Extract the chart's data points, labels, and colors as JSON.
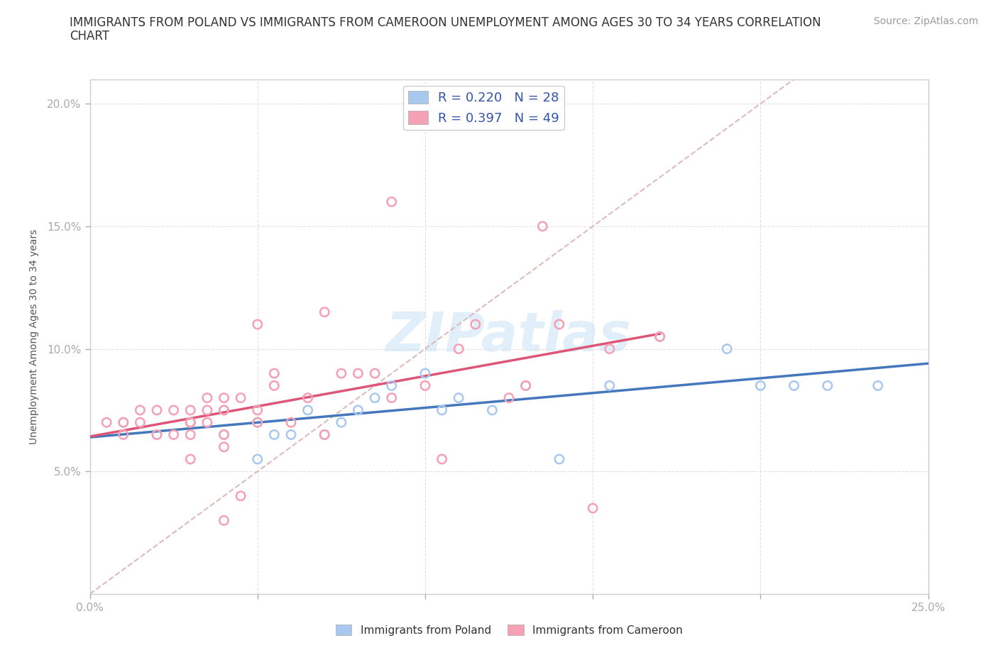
{
  "title_line1": "IMMIGRANTS FROM POLAND VS IMMIGRANTS FROM CAMEROON UNEMPLOYMENT AMONG AGES 30 TO 34 YEARS CORRELATION",
  "title_line2": "CHART",
  "source_text": "Source: ZipAtlas.com",
  "ylabel": "Unemployment Among Ages 30 to 34 years",
  "xlim": [
    0.0,
    0.25
  ],
  "ylim": [
    0.0,
    0.21
  ],
  "xticks": [
    0.0,
    0.05,
    0.1,
    0.15,
    0.2,
    0.25
  ],
  "xticklabels": [
    "0.0%",
    "",
    "",
    "",
    "",
    "25.0%"
  ],
  "yticks": [
    0.05,
    0.1,
    0.15,
    0.2
  ],
  "yticklabels": [
    "5.0%",
    "10.0%",
    "15.0%",
    "20.0%"
  ],
  "poland_color": "#a8c8f0",
  "cameroon_color": "#f4a0b5",
  "poland_line_color": "#4477bb",
  "cameroon_line_color": "#dd5577",
  "diagonal_color": "#ddbbbb",
  "watermark": "ZIPatlas",
  "legend_label_poland": "R = 0.220   N = 28",
  "legend_label_cameroon": "R = 0.397   N = 49",
  "poland_x": [
    0.01,
    0.02,
    0.03,
    0.04,
    0.04,
    0.05,
    0.05,
    0.055,
    0.06,
    0.065,
    0.07,
    0.075,
    0.08,
    0.085,
    0.09,
    0.1,
    0.105,
    0.11,
    0.12,
    0.13,
    0.14,
    0.155,
    0.17,
    0.19,
    0.2,
    0.21,
    0.22,
    0.235
  ],
  "poland_y": [
    0.07,
    0.065,
    0.07,
    0.075,
    0.065,
    0.055,
    0.07,
    0.065,
    0.065,
    0.075,
    0.065,
    0.07,
    0.075,
    0.08,
    0.085,
    0.09,
    0.075,
    0.08,
    0.075,
    0.085,
    0.055,
    0.085,
    0.105,
    0.1,
    0.085,
    0.085,
    0.085,
    0.085
  ],
  "cameroon_x": [
    0.005,
    0.01,
    0.01,
    0.015,
    0.015,
    0.02,
    0.02,
    0.025,
    0.025,
    0.03,
    0.03,
    0.03,
    0.03,
    0.03,
    0.035,
    0.035,
    0.035,
    0.04,
    0.04,
    0.04,
    0.04,
    0.04,
    0.045,
    0.045,
    0.05,
    0.05,
    0.05,
    0.055,
    0.055,
    0.06,
    0.065,
    0.07,
    0.07,
    0.075,
    0.08,
    0.085,
    0.09,
    0.09,
    0.1,
    0.105,
    0.11,
    0.115,
    0.125,
    0.13,
    0.135,
    0.14,
    0.15,
    0.155,
    0.17
  ],
  "cameroon_y": [
    0.07,
    0.065,
    0.07,
    0.07,
    0.075,
    0.065,
    0.075,
    0.075,
    0.065,
    0.065,
    0.07,
    0.07,
    0.075,
    0.055,
    0.07,
    0.075,
    0.08,
    0.03,
    0.06,
    0.065,
    0.075,
    0.08,
    0.04,
    0.08,
    0.07,
    0.075,
    0.11,
    0.085,
    0.09,
    0.07,
    0.08,
    0.065,
    0.115,
    0.09,
    0.09,
    0.09,
    0.16,
    0.08,
    0.085,
    0.055,
    0.1,
    0.11,
    0.08,
    0.085,
    0.15,
    0.11,
    0.035,
    0.1,
    0.105
  ],
  "background_color": "#ffffff",
  "grid_color": "#e0e0e0",
  "title_fontsize": 12,
  "axis_label_fontsize": 10,
  "tick_fontsize": 11,
  "legend_fontsize": 13,
  "source_fontsize": 10
}
